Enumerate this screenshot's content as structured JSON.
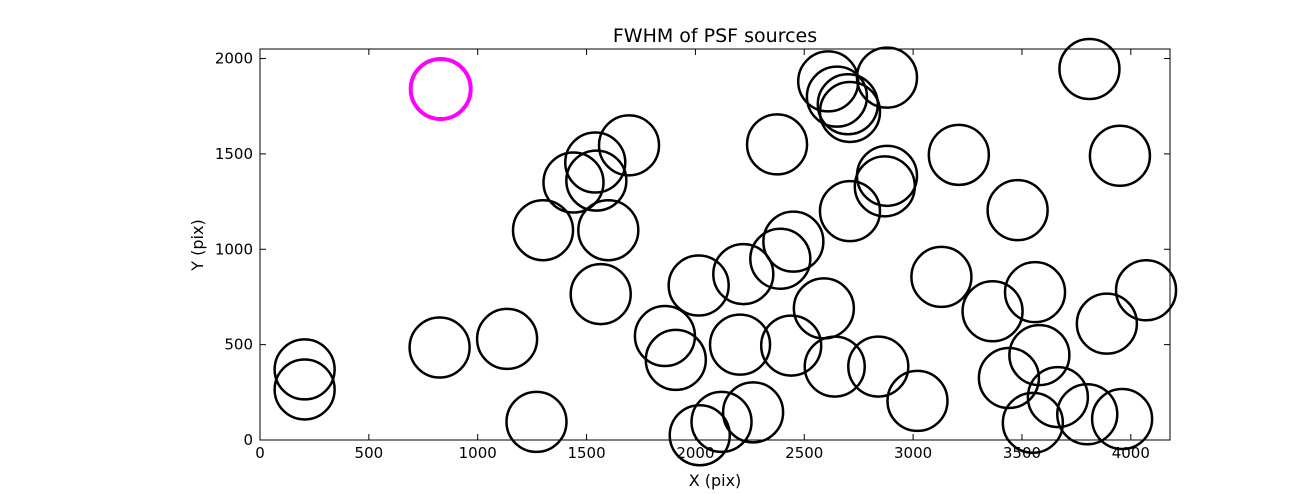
{
  "chart_data": {
    "type": "scatter",
    "title": "FWHM of PSF sources",
    "xlabel": "X (pix)",
    "ylabel": "Y (pix)",
    "xlim": [
      0,
      4180
    ],
    "ylim": [
      0,
      2050
    ],
    "xticks": [
      0,
      500,
      1000,
      1500,
      2000,
      2500,
      3000,
      3500,
      4000
    ],
    "yticks": [
      0,
      500,
      1000,
      1500,
      2000
    ],
    "grid": false,
    "marker": "open-circle",
    "highlight_color": "#ff00ff",
    "default_color": "#000000",
    "highlight": {
      "x": 830,
      "y": 1840
    },
    "points": [
      {
        "x": 205,
        "y": 370
      },
      {
        "x": 205,
        "y": 265
      },
      {
        "x": 825,
        "y": 485
      },
      {
        "x": 1135,
        "y": 530
      },
      {
        "x": 1270,
        "y": 95
      },
      {
        "x": 1300,
        "y": 1100
      },
      {
        "x": 1440,
        "y": 1350
      },
      {
        "x": 1545,
        "y": 1360
      },
      {
        "x": 1540,
        "y": 1455
      },
      {
        "x": 1695,
        "y": 1545
      },
      {
        "x": 1600,
        "y": 1100
      },
      {
        "x": 1565,
        "y": 765
      },
      {
        "x": 1860,
        "y": 545
      },
      {
        "x": 1910,
        "y": 420
      },
      {
        "x": 2015,
        "y": 810
      },
      {
        "x": 2020,
        "y": 25
      },
      {
        "x": 2120,
        "y": 95
      },
      {
        "x": 2205,
        "y": 500
      },
      {
        "x": 2220,
        "y": 870
      },
      {
        "x": 2265,
        "y": 145
      },
      {
        "x": 2375,
        "y": 1550
      },
      {
        "x": 2390,
        "y": 950
      },
      {
        "x": 2450,
        "y": 1040
      },
      {
        "x": 2440,
        "y": 495
      },
      {
        "x": 2590,
        "y": 690
      },
      {
        "x": 2610,
        "y": 1880
      },
      {
        "x": 2650,
        "y": 1800
      },
      {
        "x": 2710,
        "y": 1720
      },
      {
        "x": 2700,
        "y": 1760
      },
      {
        "x": 2710,
        "y": 1200
      },
      {
        "x": 2640,
        "y": 385
      },
      {
        "x": 2840,
        "y": 385
      },
      {
        "x": 2880,
        "y": 1900
      },
      {
        "x": 2880,
        "y": 1385
      },
      {
        "x": 2870,
        "y": 1330
      },
      {
        "x": 3020,
        "y": 205
      },
      {
        "x": 3130,
        "y": 855
      },
      {
        "x": 3210,
        "y": 1495
      },
      {
        "x": 3365,
        "y": 675
      },
      {
        "x": 3440,
        "y": 325
      },
      {
        "x": 3480,
        "y": 1205
      },
      {
        "x": 3550,
        "y": 90
      },
      {
        "x": 3560,
        "y": 775
      },
      {
        "x": 3580,
        "y": 445
      },
      {
        "x": 3665,
        "y": 225
      },
      {
        "x": 3810,
        "y": 1945
      },
      {
        "x": 3800,
        "y": 135
      },
      {
        "x": 3890,
        "y": 610
      },
      {
        "x": 3950,
        "y": 1490
      },
      {
        "x": 3960,
        "y": 110
      },
      {
        "x": 4070,
        "y": 785
      }
    ]
  }
}
